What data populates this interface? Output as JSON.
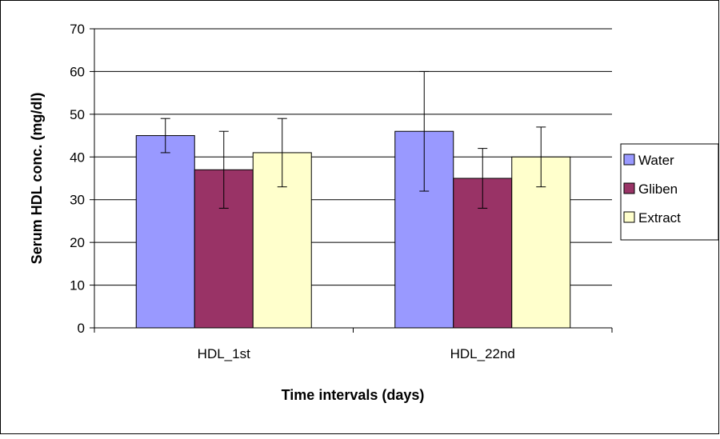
{
  "chart_data": {
    "type": "bar",
    "title": "",
    "xlabel": "Time intervals (days)",
    "ylabel": "Serum HDL conc. (mg/dl)",
    "categories": [
      "HDL_1st",
      "HDL_22nd"
    ],
    "series": [
      {
        "name": "Water",
        "values": [
          45,
          46
        ],
        "error_low": [
          41,
          32
        ],
        "error_high": [
          49,
          60
        ],
        "color": "#9999FF"
      },
      {
        "name": "Gliben",
        "values": [
          37,
          35
        ],
        "error_low": [
          28,
          28
        ],
        "error_high": [
          46,
          42
        ],
        "color": "#993366"
      },
      {
        "name": "Extract",
        "values": [
          41,
          40
        ],
        "error_low": [
          33,
          33
        ],
        "error_high": [
          49,
          47
        ],
        "color": "#FFFFCC"
      }
    ],
    "ylim": [
      0,
      70
    ],
    "yticks": [
      0,
      10,
      20,
      30,
      40,
      50,
      60,
      70
    ],
    "grid": true,
    "legend": "right"
  }
}
